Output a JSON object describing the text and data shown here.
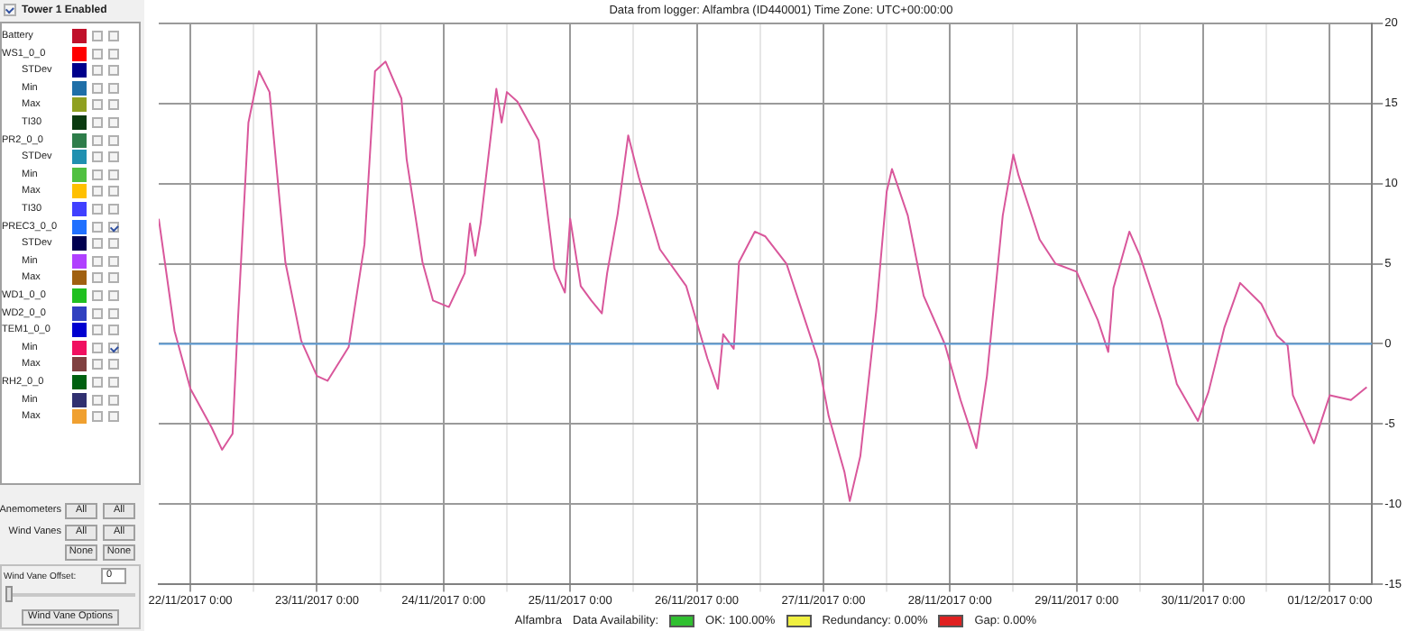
{
  "chart_data": {
    "type": "line",
    "title": "Data from logger: Alfambra (ID440001) Time Zone: UTC+00:00:00",
    "x": [
      "2017-11-21T18:00",
      "2017-11-21T21:00",
      "2017-11-22T00:00",
      "2017-11-22T04:00",
      "2017-11-22T06:00",
      "2017-11-22T08:00",
      "2017-11-22T09:00",
      "2017-11-22T11:00",
      "2017-11-22T13:00",
      "2017-11-22T15:00",
      "2017-11-22T18:00",
      "2017-11-22T21:00",
      "2017-11-23T00:00",
      "2017-11-23T02:00",
      "2017-11-23T06:00",
      "2017-11-23T09:00",
      "2017-11-23T11:00",
      "2017-11-23T13:00",
      "2017-11-23T16:00",
      "2017-11-23T17:00",
      "2017-11-23T20:00",
      "2017-11-23T22:00",
      "2017-11-24T01:00",
      "2017-11-24T04:00",
      "2017-11-24T05:00",
      "2017-11-24T06:00",
      "2017-11-24T07:00",
      "2017-11-24T10:00",
      "2017-11-24T11:00",
      "2017-11-24T12:00",
      "2017-11-24T14:00",
      "2017-11-24T18:00",
      "2017-11-24T21:00",
      "2017-11-24T23:00",
      "2017-11-25T00:00",
      "2017-11-25T02:00",
      "2017-11-25T04:00",
      "2017-11-25T06:00",
      "2017-11-25T07:00",
      "2017-11-25T09:00",
      "2017-11-25T11:00",
      "2017-11-25T13:00",
      "2017-11-25T17:00",
      "2017-11-25T22:00",
      "2017-11-26T02:00",
      "2017-11-26T04:00",
      "2017-11-26T05:00",
      "2017-11-26T07:00",
      "2017-11-26T08:00",
      "2017-11-26T11:00",
      "2017-11-26T13:00",
      "2017-11-26T17:00",
      "2017-11-26T20:00",
      "2017-11-26T23:00",
      "2017-11-27T01:00",
      "2017-11-27T04:00",
      "2017-11-27T05:00",
      "2017-11-27T07:00",
      "2017-11-27T10:00",
      "2017-11-27T12:00",
      "2017-11-27T13:00",
      "2017-11-27T16:00",
      "2017-11-27T19:00",
      "2017-11-27T23:00",
      "2017-11-28T02:00",
      "2017-11-28T05:00",
      "2017-11-28T07:00",
      "2017-11-28T10:00",
      "2017-11-28T12:00",
      "2017-11-28T13:00",
      "2017-11-28T17:00",
      "2017-11-28T20:00",
      "2017-11-29T00:00",
      "2017-11-29T04:00",
      "2017-11-29T06:00",
      "2017-11-29T07:00",
      "2017-11-29T10:00",
      "2017-11-29T12:00",
      "2017-11-29T16:00",
      "2017-11-29T19:00",
      "2017-11-29T23:00",
      "2017-11-30T01:00",
      "2017-11-30T04:00",
      "2017-11-30T07:00",
      "2017-11-30T11:00",
      "2017-11-30T14:00",
      "2017-11-30T16:00",
      "2017-11-30T17:00",
      "2017-11-30T21:00",
      "2017-12-01T00:00",
      "2017-12-01T04:00",
      "2017-12-01T07:00"
    ],
    "series": [
      {
        "color": "#d9579b",
        "values": [
          7.8,
          0.8,
          -2.8,
          -5.2,
          -6.6,
          -5.6,
          1.4,
          13.8,
          17.0,
          15.7,
          5.1,
          0.2,
          -2.0,
          -2.3,
          -0.2,
          6.2,
          17.0,
          17.6,
          15.3,
          11.5,
          5.1,
          2.7,
          2.3,
          4.4,
          7.5,
          5.5,
          7.5,
          15.9,
          13.8,
          15.7,
          15.1,
          12.7,
          4.7,
          3.2,
          7.8,
          3.6,
          2.7,
          1.9,
          4.4,
          8.1,
          13.0,
          10.4,
          5.9,
          3.6,
          -0.9,
          -2.8,
          0.6,
          -0.3,
          5.1,
          7.0,
          6.7,
          5.0,
          2.0,
          -1.0,
          -4.5,
          -8.0,
          -9.8,
          -7.0,
          2.0,
          9.5,
          10.9,
          8.0,
          3.0,
          0.0,
          -3.5,
          -6.5,
          -2.0,
          8.0,
          11.8,
          10.5,
          6.5,
          5.0,
          4.5,
          1.5,
          -0.5,
          3.5,
          7.0,
          5.5,
          1.5,
          -2.5,
          -4.8,
          -3.0,
          1.0,
          3.8,
          2.5,
          0.5,
          -0.1,
          -3.2,
          -6.2,
          -3.2,
          -3.5,
          -2.7
        ]
      }
    ],
    "xlim": [
      "2017-11-21T18:00",
      "2017-12-01T08:00"
    ],
    "xticks": [
      {
        "value": "2017-11-22T00:00",
        "label": "22/11/2017 0:00"
      },
      {
        "value": "2017-11-22T12:00",
        "label": null
      },
      {
        "value": "2017-11-23T00:00",
        "label": "23/11/2017 0:00"
      },
      {
        "value": "2017-11-23T12:00",
        "label": null
      },
      {
        "value": "2017-11-24T00:00",
        "label": "24/11/2017 0:00"
      },
      {
        "value": "2017-11-24T12:00",
        "label": null
      },
      {
        "value": "2017-11-25T00:00",
        "label": "25/11/2017 0:00"
      },
      {
        "value": "2017-11-25T12:00",
        "label": null
      },
      {
        "value": "2017-11-26T00:00",
        "label": "26/11/2017 0:00"
      },
      {
        "value": "2017-11-26T12:00",
        "label": null
      },
      {
        "value": "2017-11-27T00:00",
        "label": "27/11/2017 0:00"
      },
      {
        "value": "2017-11-27T12:00",
        "label": null
      },
      {
        "value": "2017-11-28T00:00",
        "label": "28/11/2017 0:00"
      },
      {
        "value": "2017-11-28T12:00",
        "label": null
      },
      {
        "value": "2017-11-29T00:00",
        "label": "29/11/2017 0:00"
      },
      {
        "value": "2017-11-29T12:00",
        "label": null
      },
      {
        "value": "2017-11-30T00:00",
        "label": "30/11/2017 0:00"
      },
      {
        "value": "2017-11-30T12:00",
        "label": null
      },
      {
        "value": "2017-12-01T00:00",
        "label": "01/12/2017 0:00"
      }
    ],
    "ylim": [
      -15,
      20
    ],
    "yticks": [
      -15,
      -10,
      -5,
      0,
      5,
      10,
      15,
      20
    ],
    "grid": true,
    "legend": false,
    "marker": "none",
    "line_style": "solid",
    "ref_lines": [
      {
        "axis": "y",
        "value": 0,
        "color": "#5b9bd5"
      }
    ],
    "annotations": [
      "Tower 1 Enabled",
      "Battery",
      "WS1_0_0",
      "STDev",
      "Min",
      "Max",
      "TI30",
      "PR2_0_0",
      "STDev",
      "Min",
      "Max",
      "TI30",
      "PREC3_0_0",
      "STDev",
      "Min",
      "Max",
      "WD1_0_0",
      "WD2_0_0",
      "TEM1_0_0",
      "Min",
      "Max",
      "RH2_0_0",
      "Min",
      "Max",
      "Anemometers",
      "All",
      "All",
      "Wind Vanes",
      "All",
      "All",
      "None",
      "None",
      "Wind Vane Offset:",
      "0",
      "Wind Vane Options",
      "Alfambra",
      "Data Availability:",
      "OK: 100.00%",
      "Redundancy: 0.00%",
      "Gap: 0.00%"
    ]
  }
}
